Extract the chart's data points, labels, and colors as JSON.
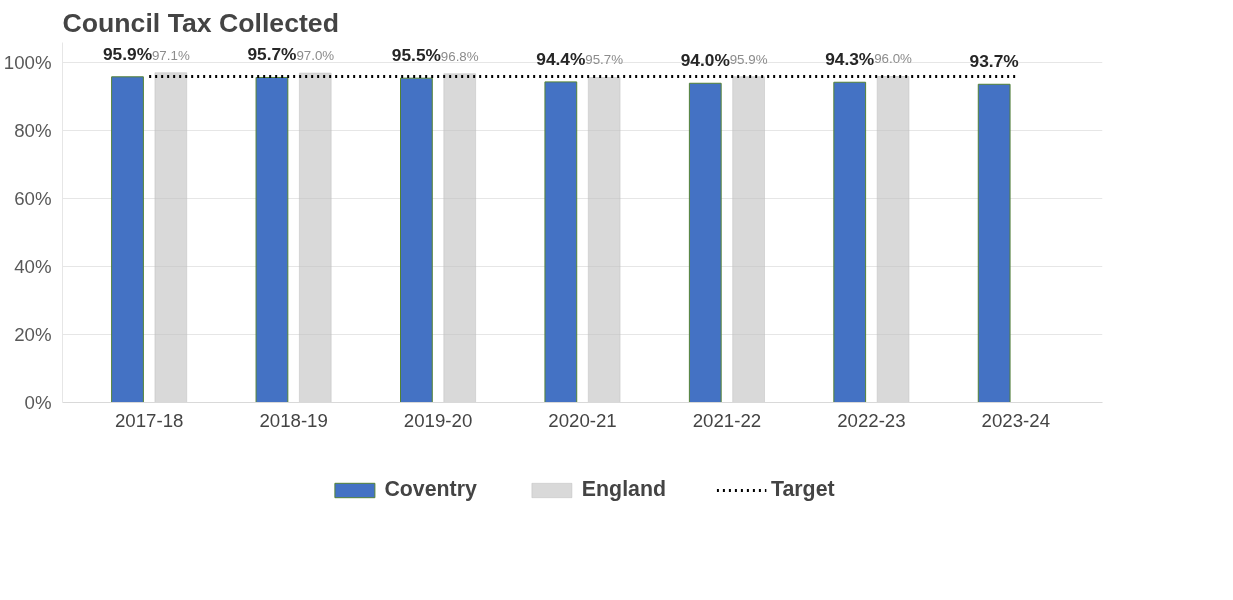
{
  "chart_data": {
    "type": "bar",
    "title": "Council Tax Collected",
    "categories": [
      "2017-18",
      "2018-19",
      "2019-20",
      "2020-21",
      "2021-22",
      "2022-23",
      "2023-24"
    ],
    "series": [
      {
        "name": "Coventry",
        "color": "#4472c4",
        "values": [
          95.9,
          95.7,
          95.5,
          94.4,
          94.0,
          94.3,
          93.7
        ],
        "value_labels": [
          "95.9%",
          "95.7%",
          "95.5%",
          "94.4%",
          "94.0%",
          "94.3%",
          "93.7%"
        ]
      },
      {
        "name": "England",
        "color": "#bfbfbf",
        "values": [
          97.1,
          97.0,
          96.8,
          95.7,
          95.9,
          96.0,
          null
        ],
        "value_labels": [
          "97.1%",
          "97.0%",
          "96.8%",
          "95.7%",
          "95.9%",
          "96.0%",
          null
        ]
      },
      {
        "name": "Target",
        "type": "line",
        "color": "#000000",
        "line_style": "dotted",
        "values": [
          96.0,
          96.0,
          96.0,
          96.0,
          96.0,
          96.0,
          96.0
        ]
      }
    ],
    "ylim": [
      0,
      106
    ],
    "yticks": [
      {
        "value": 0,
        "label": "0%"
      },
      {
        "value": 20,
        "label": "20%"
      },
      {
        "value": 40,
        "label": "40%"
      },
      {
        "value": 60,
        "label": "60%"
      },
      {
        "value": 80,
        "label": "80%"
      },
      {
        "value": 100,
        "label": "100%"
      }
    ],
    "grid": "y",
    "legend": "bottom"
  }
}
